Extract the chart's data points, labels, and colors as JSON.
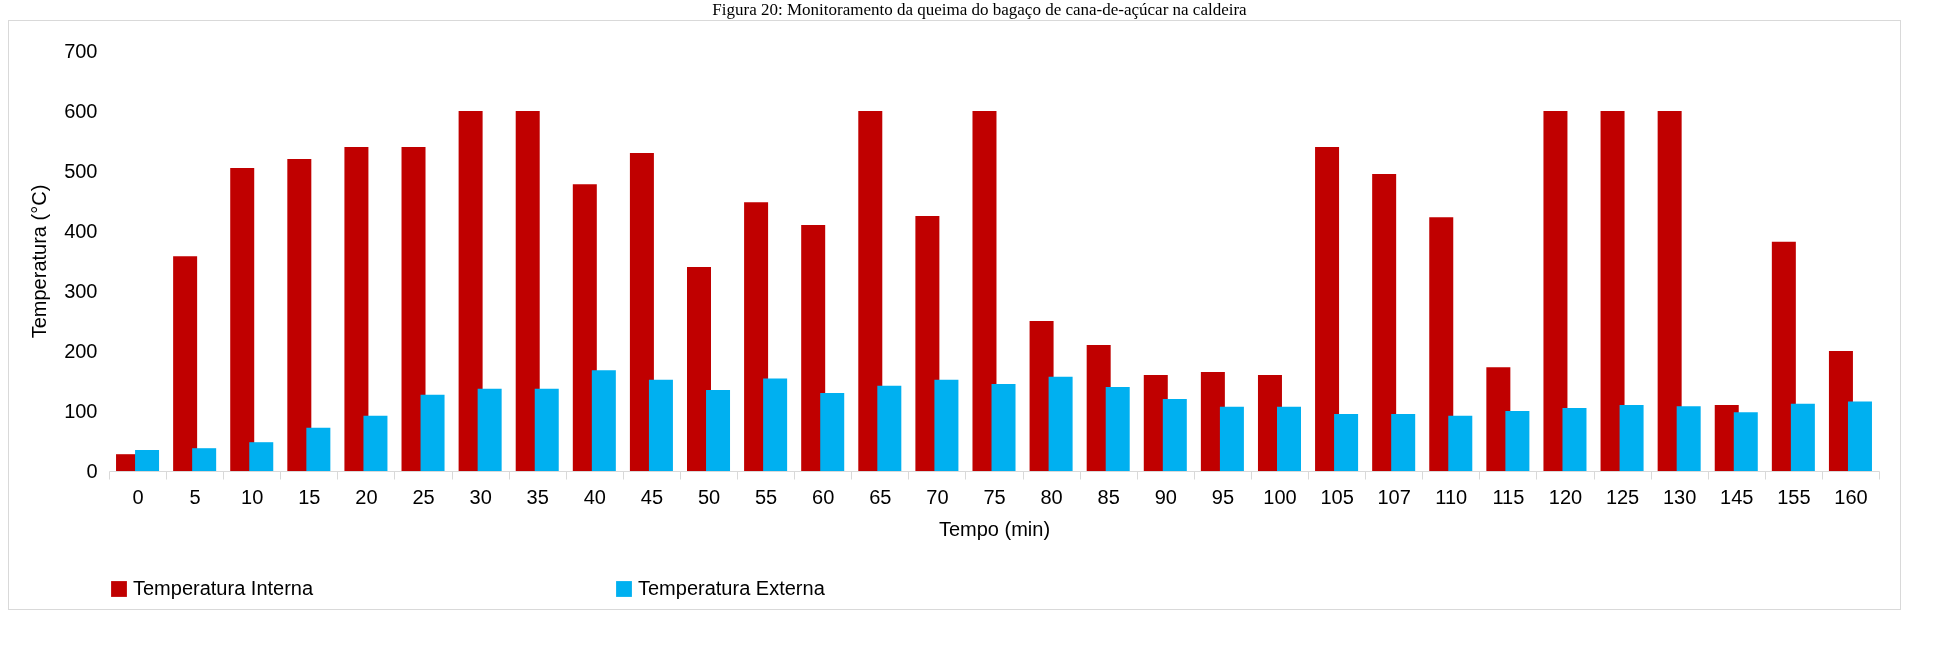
{
  "chart_data": {
    "type": "bar",
    "title": "Figura 20: Monitoramento da queima do bagaço de cana-de-açúcar na caldeira",
    "xlabel": "Tempo (min)",
    "ylabel": "Temperatura (°C)",
    "categories": [
      "0",
      "5",
      "10",
      "15",
      "20",
      "25",
      "30",
      "35",
      "40",
      "45",
      "50",
      "55",
      "60",
      "65",
      "70",
      "75",
      "80",
      "85",
      "90",
      "95",
      "100",
      "105",
      "107",
      "110",
      "115",
      "120",
      "125",
      "130",
      "145",
      "155",
      "160"
    ],
    "series": [
      {
        "name": "Temperatura Interna",
        "color": "#c00000",
        "values": [
          28,
          358,
          505,
          520,
          540,
          540,
          600,
          600,
          478,
          530,
          340,
          448,
          410,
          600,
          425,
          600,
          250,
          210,
          160,
          165,
          160,
          540,
          495,
          423,
          173,
          600,
          600,
          600,
          110,
          382,
          200
        ]
      },
      {
        "name": "Temperatura Externa",
        "color": "#00b0f0",
        "values": [
          35,
          38,
          48,
          72,
          92,
          127,
          137,
          137,
          168,
          152,
          135,
          154,
          130,
          142,
          152,
          145,
          157,
          140,
          120,
          107,
          107,
          95,
          95,
          92,
          100,
          105,
          110,
          108,
          98,
          112,
          116
        ]
      }
    ],
    "ylim": [
      0,
      700
    ],
    "yticks": [
      0,
      100,
      200,
      300,
      400,
      500,
      600,
      700
    ],
    "grid": false,
    "legend": "bottom"
  }
}
